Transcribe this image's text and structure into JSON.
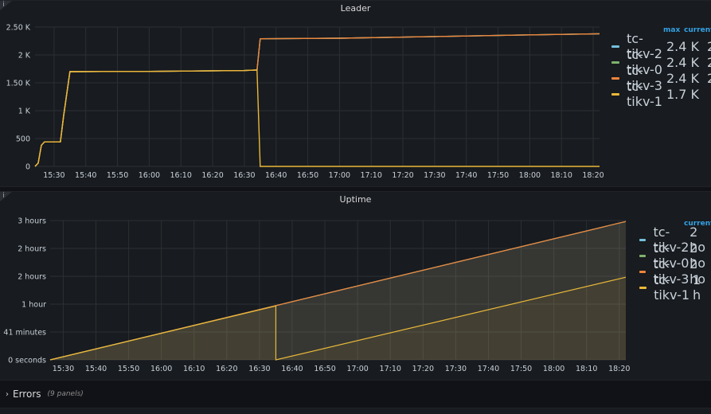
{
  "leader": {
    "title": "Leader",
    "legend_headers": {
      "max": "max",
      "current": "current"
    },
    "legend": [
      {
        "name": "tc-tikv-2",
        "max": "2.4 K",
        "current": "2",
        "color": "#73bfdb"
      },
      {
        "name": "tc-tikv-0",
        "max": "2.4 K",
        "current": "2",
        "color": "#7eb26d"
      },
      {
        "name": "tc-tikv-3",
        "max": "2.4 K",
        "current": "2",
        "color": "#ef843c"
      },
      {
        "name": "tc-tikv-1",
        "max": "1.7 K",
        "current": "",
        "color": "#eab839"
      }
    ]
  },
  "uptime": {
    "title": "Uptime",
    "legend_headers": {
      "current": "current"
    },
    "legend": [
      {
        "name": "tc-tikv-2",
        "current": "2 ho",
        "color": "#73bfdb"
      },
      {
        "name": "tc-tikv-0",
        "current": "2 ho",
        "color": "#7eb26d"
      },
      {
        "name": "tc-tikv-3",
        "current": "2 ho",
        "color": "#ef843c"
      },
      {
        "name": "tc-tikv-1",
        "current": "1 h",
        "color": "#eab839"
      }
    ]
  },
  "errors_row": {
    "title": "Errors",
    "count": "(9 panels)"
  },
  "chart_data": [
    {
      "type": "line",
      "title": "Leader",
      "x_ticks": [
        "15:30",
        "15:40",
        "15:50",
        "16:00",
        "16:10",
        "16:20",
        "16:30",
        "16:40",
        "16:50",
        "17:00",
        "17:10",
        "17:20",
        "17:30",
        "17:40",
        "17:50",
        "18:00",
        "18:10",
        "18:20"
      ],
      "y_ticks": [
        "0",
        "500",
        "1 K",
        "1.50 K",
        "2 K",
        "2.50 K"
      ],
      "ylim": [
        0,
        2500
      ],
      "xlim": [
        "15:24",
        "18:22"
      ],
      "grid": true,
      "legend_position": "right",
      "series": [
        {
          "name": "tc-tikv-2",
          "points": [
            [
              "15:24",
              0
            ],
            [
              "15:25",
              60
            ],
            [
              "15:26",
              380
            ],
            [
              "15:27",
              440
            ],
            [
              "15:32",
              440
            ],
            [
              "15:33",
              900
            ],
            [
              "15:35",
              1700
            ],
            [
              "16:00",
              1705
            ],
            [
              "16:30",
              1720
            ],
            [
              "16:34",
              1730
            ],
            [
              "16:35",
              2290
            ],
            [
              "17:00",
              2300
            ],
            [
              "17:30",
              2330
            ],
            [
              "18:00",
              2360
            ],
            [
              "18:22",
              2380
            ]
          ]
        },
        {
          "name": "tc-tikv-0",
          "points": [
            [
              "15:24",
              0
            ],
            [
              "15:25",
              60
            ],
            [
              "15:26",
              380
            ],
            [
              "15:27",
              440
            ],
            [
              "15:32",
              440
            ],
            [
              "15:33",
              900
            ],
            [
              "15:35",
              1700
            ],
            [
              "16:00",
              1705
            ],
            [
              "16:30",
              1720
            ],
            [
              "16:34",
              1730
            ],
            [
              "16:35",
              2290
            ],
            [
              "17:00",
              2300
            ],
            [
              "17:30",
              2330
            ],
            [
              "18:00",
              2360
            ],
            [
              "18:22",
              2380
            ]
          ]
        },
        {
          "name": "tc-tikv-3",
          "points": [
            [
              "15:24",
              0
            ],
            [
              "15:25",
              60
            ],
            [
              "15:26",
              380
            ],
            [
              "15:27",
              440
            ],
            [
              "15:32",
              440
            ],
            [
              "15:33",
              900
            ],
            [
              "15:35",
              1700
            ],
            [
              "16:00",
              1705
            ],
            [
              "16:30",
              1720
            ],
            [
              "16:34",
              1730
            ],
            [
              "16:35",
              2290
            ],
            [
              "17:00",
              2300
            ],
            [
              "17:30",
              2330
            ],
            [
              "18:00",
              2360
            ],
            [
              "18:22",
              2380
            ]
          ]
        },
        {
          "name": "tc-tikv-1",
          "points": [
            [
              "15:24",
              0
            ],
            [
              "15:25",
              60
            ],
            [
              "15:26",
              380
            ],
            [
              "15:27",
              440
            ],
            [
              "15:32",
              440
            ],
            [
              "15:33",
              900
            ],
            [
              "15:35",
              1700
            ],
            [
              "16:00",
              1705
            ],
            [
              "16:30",
              1720
            ],
            [
              "16:34",
              1730
            ],
            [
              "16:35",
              0
            ],
            [
              "18:22",
              0
            ]
          ]
        }
      ]
    },
    {
      "type": "area",
      "title": "Uptime",
      "x_ticks": [
        "15:30",
        "15:40",
        "15:50",
        "16:00",
        "16:10",
        "16:20",
        "16:30",
        "16:40",
        "16:50",
        "17:00",
        "17:10",
        "17:20",
        "17:30",
        "17:40",
        "17:50",
        "18:00",
        "18:10",
        "18:20"
      ],
      "y_ticks": [
        "0 seconds",
        "41 minutes",
        "1 hour",
        "2 hours",
        "2 hours",
        "3 hours"
      ],
      "ylim": [
        0,
        3
      ],
      "xlim": [
        "15:26",
        "18:22"
      ],
      "grid": true,
      "legend_position": "right",
      "series": [
        {
          "name": "tc-tikv-2",
          "points": [
            [
              "15:26",
              0
            ],
            [
              "18:22",
              2.98
            ]
          ]
        },
        {
          "name": "tc-tikv-0",
          "points": [
            [
              "15:26",
              0
            ],
            [
              "18:22",
              2.98
            ]
          ]
        },
        {
          "name": "tc-tikv-3",
          "points": [
            [
              "15:26",
              0
            ],
            [
              "18:22",
              2.98
            ]
          ]
        },
        {
          "name": "tc-tikv-1",
          "points": [
            [
              "15:26",
              0
            ],
            [
              "16:35",
              1.16
            ],
            [
              "16:35",
              0
            ],
            [
              "18:22",
              1.78
            ]
          ]
        }
      ]
    }
  ]
}
